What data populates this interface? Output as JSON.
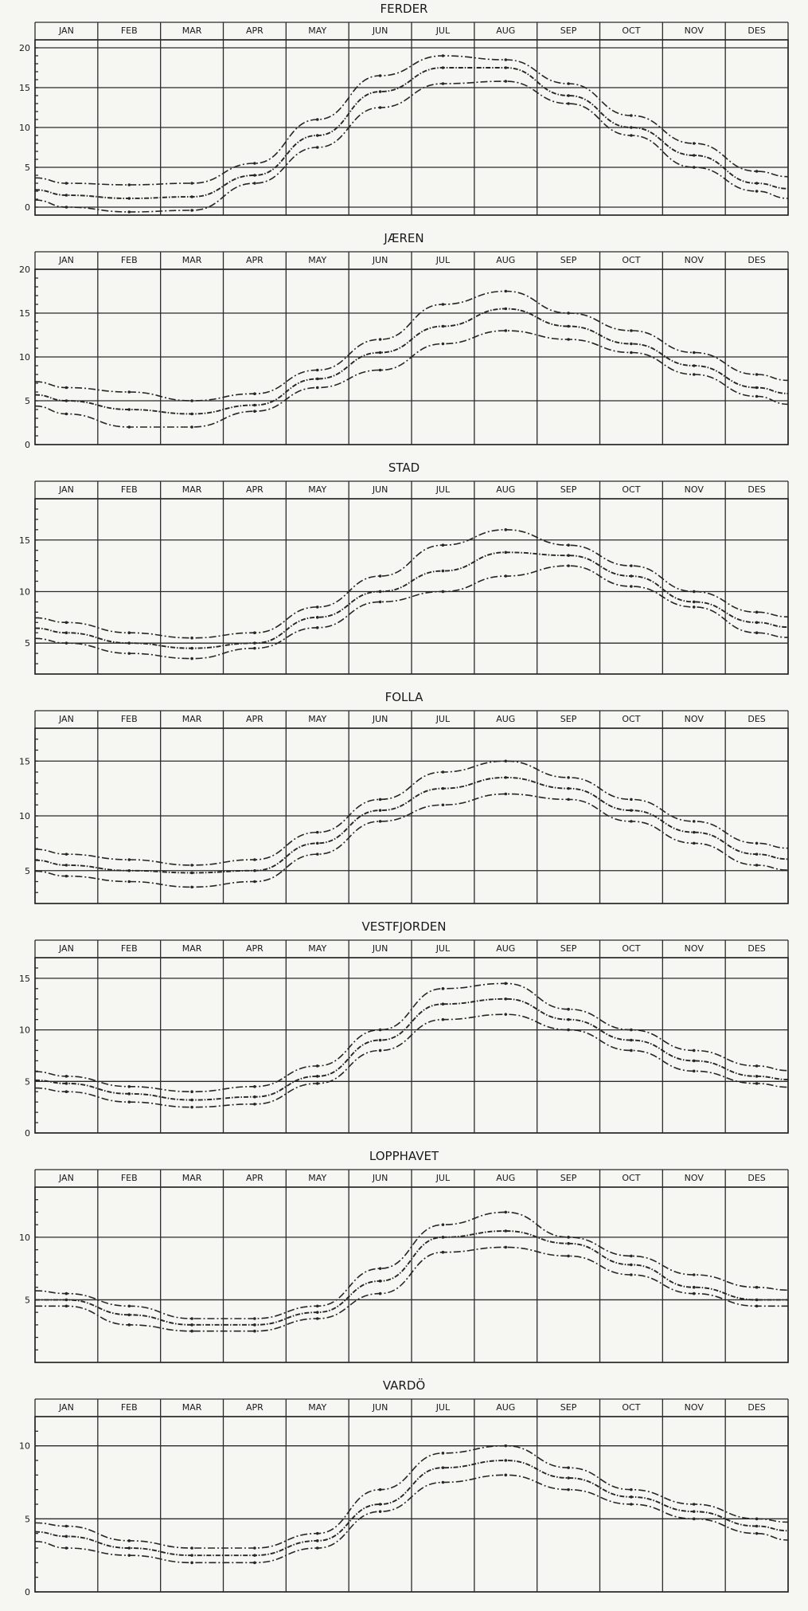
{
  "chart_data": [
    {
      "type": "line",
      "title": "FERDER",
      "categories": [
        "JAN",
        "FEB",
        "MAR",
        "APR",
        "MAY",
        "JUN",
        "JUL",
        "AUG",
        "SEP",
        "OCT",
        "NOV",
        "DES"
      ],
      "yticks": [
        0,
        5,
        10,
        15,
        20
      ],
      "ylim": [
        -1,
        21
      ],
      "series": [
        {
          "values": [
            3.0,
            2.8,
            3.0,
            5.5,
            11.0,
            16.5,
            19.0,
            18.5,
            15.5,
            11.5,
            8.0,
            4.5
          ]
        },
        {
          "values": [
            1.5,
            1.1,
            1.3,
            4.0,
            9.0,
            14.5,
            17.5,
            17.5,
            14.0,
            10.0,
            6.5,
            3.0
          ]
        },
        {
          "values": [
            0.0,
            -0.6,
            -0.4,
            3.0,
            7.5,
            12.5,
            15.5,
            15.8,
            13.0,
            9.0,
            5.0,
            2.0
          ]
        }
      ]
    },
    {
      "type": "line",
      "title": "JÆREN",
      "categories": [
        "JAN",
        "FEB",
        "MAR",
        "APR",
        "MAY",
        "JUN",
        "JUL",
        "AUG",
        "SEP",
        "OCT",
        "NOV",
        "DES"
      ],
      "yticks": [
        0,
        5,
        10,
        15,
        20
      ],
      "ylim": [
        0,
        20
      ],
      "series": [
        {
          "values": [
            6.5,
            6.0,
            5.0,
            5.8,
            8.5,
            12.0,
            16.0,
            17.5,
            15.0,
            13.0,
            10.5,
            8.0
          ]
        },
        {
          "values": [
            5.0,
            4.0,
            3.5,
            4.5,
            7.5,
            10.5,
            13.5,
            15.5,
            13.5,
            11.5,
            9.0,
            6.5
          ]
        },
        {
          "values": [
            3.5,
            2.0,
            2.0,
            3.8,
            6.5,
            8.5,
            11.5,
            13.0,
            12.0,
            10.5,
            8.0,
            5.5
          ]
        }
      ]
    },
    {
      "type": "line",
      "title": "STAD",
      "categories": [
        "JAN",
        "FEB",
        "MAR",
        "APR",
        "MAY",
        "JUN",
        "JUL",
        "AUG",
        "SEP",
        "OCT",
        "NOV",
        "DES"
      ],
      "yticks": [
        5,
        10,
        15
      ],
      "ylim": [
        2,
        19
      ],
      "series": [
        {
          "values": [
            7.0,
            6.0,
            5.5,
            6.0,
            8.5,
            11.5,
            14.5,
            16.0,
            14.5,
            12.5,
            10.0,
            8.0
          ]
        },
        {
          "values": [
            6.0,
            5.0,
            4.5,
            5.0,
            7.5,
            10.0,
            12.0,
            13.8,
            13.5,
            11.5,
            9.0,
            7.0
          ]
        },
        {
          "values": [
            5.0,
            4.0,
            3.5,
            4.5,
            6.5,
            9.0,
            10.0,
            11.5,
            12.5,
            10.5,
            8.5,
            6.0
          ]
        }
      ]
    },
    {
      "type": "line",
      "title": "FOLLA",
      "categories": [
        "JAN",
        "FEB",
        "MAR",
        "APR",
        "MAY",
        "JUN",
        "JUL",
        "AUG",
        "SEP",
        "OCT",
        "NOV",
        "DES"
      ],
      "yticks": [
        5,
        10,
        15
      ],
      "ylim": [
        2,
        18
      ],
      "series": [
        {
          "values": [
            6.5,
            6.0,
            5.5,
            6.0,
            8.5,
            11.5,
            14.0,
            15.0,
            13.5,
            11.5,
            9.5,
            7.5
          ]
        },
        {
          "values": [
            5.5,
            5.0,
            4.8,
            5.0,
            7.5,
            10.5,
            12.5,
            13.5,
            12.5,
            10.5,
            8.5,
            6.5
          ]
        },
        {
          "values": [
            4.5,
            4.0,
            3.5,
            4.0,
            6.5,
            9.5,
            11.0,
            12.0,
            11.5,
            9.5,
            7.5,
            5.5
          ]
        }
      ]
    },
    {
      "type": "line",
      "title": "VESTFJORDEN",
      "categories": [
        "JAN",
        "FEB",
        "MAR",
        "APR",
        "MAY",
        "JUN",
        "JUL",
        "AUG",
        "SEP",
        "OCT",
        "NOV",
        "DES"
      ],
      "yticks": [
        0,
        5,
        10,
        15
      ],
      "ylim": [
        0,
        17
      ],
      "series": [
        {
          "values": [
            5.5,
            4.5,
            4.0,
            4.5,
            6.5,
            10.0,
            14.0,
            14.5,
            12.0,
            10.0,
            8.0,
            6.5
          ]
        },
        {
          "values": [
            4.8,
            3.8,
            3.2,
            3.5,
            5.5,
            9.0,
            12.5,
            13.0,
            11.0,
            9.0,
            7.0,
            5.5
          ]
        },
        {
          "values": [
            4.0,
            3.0,
            2.5,
            2.8,
            4.8,
            8.0,
            11.0,
            11.5,
            10.0,
            8.0,
            6.0,
            4.8
          ]
        }
      ]
    },
    {
      "type": "line",
      "title": "LOPPHAVET",
      "categories": [
        "JAN",
        "FEB",
        "MAR",
        "APR",
        "MAY",
        "JUN",
        "JUL",
        "AUG",
        "SEP",
        "OCT",
        "NOV",
        "DES"
      ],
      "yticks": [
        5,
        10
      ],
      "ylim": [
        0,
        14
      ],
      "series": [
        {
          "values": [
            5.5,
            4.5,
            3.5,
            3.5,
            4.5,
            7.5,
            11.0,
            12.0,
            10.0,
            8.5,
            7.0,
            6.0
          ]
        },
        {
          "values": [
            5.0,
            3.8,
            3.0,
            3.0,
            4.0,
            6.5,
            10.0,
            10.5,
            9.5,
            7.8,
            6.0,
            5.0
          ]
        },
        {
          "values": [
            4.5,
            3.0,
            2.5,
            2.5,
            3.5,
            5.5,
            8.8,
            9.2,
            8.5,
            7.0,
            5.5,
            4.5
          ]
        }
      ]
    },
    {
      "type": "line",
      "title": "VARDÖ",
      "categories": [
        "JAN",
        "FEB",
        "MAR",
        "APR",
        "MAY",
        "JUN",
        "JUL",
        "AUG",
        "SEP",
        "OCT",
        "NOV",
        "DES"
      ],
      "yticks": [
        0,
        5,
        10
      ],
      "ylim": [
        0,
        12
      ],
      "series": [
        {
          "values": [
            4.5,
            3.5,
            3.0,
            3.0,
            4.0,
            7.0,
            9.5,
            10.0,
            8.5,
            7.0,
            6.0,
            5.0
          ]
        },
        {
          "values": [
            3.8,
            3.0,
            2.5,
            2.5,
            3.5,
            6.0,
            8.5,
            9.0,
            7.8,
            6.5,
            5.5,
            4.5
          ]
        },
        {
          "values": [
            3.0,
            2.5,
            2.0,
            2.0,
            3.0,
            5.5,
            7.5,
            8.0,
            7.0,
            6.0,
            5.0,
            4.0
          ]
        }
      ]
    }
  ]
}
